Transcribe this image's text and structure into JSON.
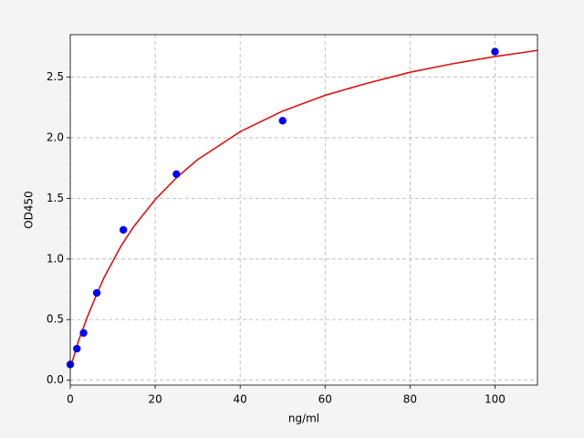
{
  "chart_data": {
    "type": "scatter",
    "xlabel": "ng/ml",
    "ylabel": "OD450",
    "xlim": [
      0,
      110
    ],
    "ylim": [
      -0.04,
      2.85
    ],
    "xticks": [
      0,
      20,
      40,
      60,
      80,
      100
    ],
    "yticks": [
      {
        "value": 0,
        "label": "0.0"
      },
      0.5,
      {
        "value": 1,
        "label": "1.0"
      },
      1.5,
      {
        "value": 2,
        "label": "2.0"
      },
      2.5
    ],
    "grid": true,
    "series": [
      {
        "type": "scatter",
        "color": "#0000ff",
        "x": [
          0,
          1.5625,
          3.125,
          6.25,
          12.5,
          25,
          50,
          100
        ],
        "values": [
          0.13,
          0.26,
          0.39,
          0.72,
          1.24,
          1.7,
          2.14,
          2.71
        ]
      },
      {
        "type": "line",
        "color": "#dd1111",
        "x": [
          0,
          2,
          4,
          6,
          8,
          10,
          12,
          15,
          20,
          25,
          30,
          40,
          50,
          60,
          70,
          80,
          90,
          100,
          110
        ],
        "values": [
          0.1,
          0.33,
          0.52,
          0.69,
          0.85,
          0.98,
          1.11,
          1.27,
          1.49,
          1.67,
          1.82,
          2.05,
          2.22,
          2.35,
          2.45,
          2.54,
          2.61,
          2.67,
          2.72
        ]
      }
    ]
  }
}
